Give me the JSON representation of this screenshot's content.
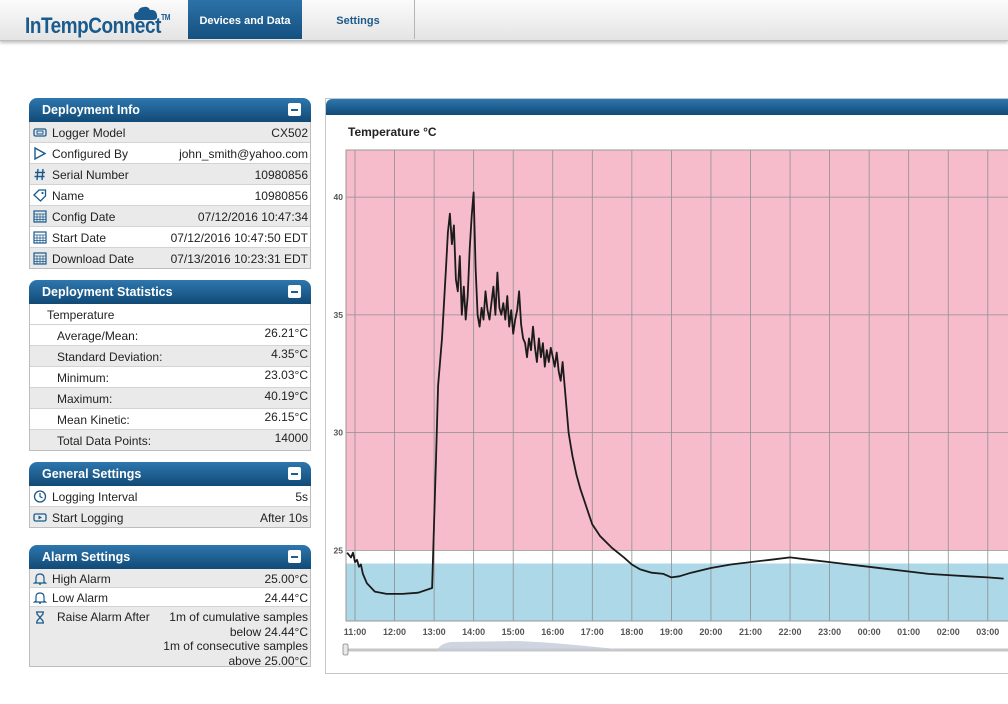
{
  "app": {
    "logo_text": "InTempConnect",
    "logo_tm": "TM",
    "tabs": [
      {
        "label": "Devices and Data",
        "active": true
      },
      {
        "label": "Settings",
        "active": false
      }
    ]
  },
  "deployment_info": {
    "title": "Deployment Info",
    "rows": [
      {
        "icon": "logger-icon",
        "label": "Logger Model",
        "value": "CX502"
      },
      {
        "icon": "play-icon",
        "label": "Configured By",
        "value": "john_smith@yahoo.com"
      },
      {
        "icon": "hash-icon",
        "label": "Serial Number",
        "value": "10980856"
      },
      {
        "icon": "tag-icon",
        "label": "Name",
        "value": "10980856"
      },
      {
        "icon": "calendar-icon",
        "label": "Config Date",
        "value": "07/12/2016 10:47:34"
      },
      {
        "icon": "calendar-icon",
        "label": "Start Date",
        "value": "07/12/2016 10:47:50 EDT"
      },
      {
        "icon": "calendar-icon",
        "label": "Download Date",
        "value": "07/13/2016 10:23:31 EDT"
      }
    ]
  },
  "deployment_statistics": {
    "title": "Deployment Statistics",
    "section_label": "Temperature",
    "rows": [
      {
        "label": "Average/Mean:",
        "value": "26.21°C"
      },
      {
        "label": "Standard Deviation:",
        "value": "4.35°C"
      },
      {
        "label": "Minimum:",
        "value": "23.03°C"
      },
      {
        "label": "Maximum:",
        "value": "40.19°C"
      },
      {
        "label": "Mean Kinetic:",
        "value": "26.15°C"
      },
      {
        "label": "Total Data Points:",
        "value": "14000"
      }
    ]
  },
  "general_settings": {
    "title": "General Settings",
    "rows": [
      {
        "icon": "clock-icon",
        "label": "Logging Interval",
        "value": "5s"
      },
      {
        "icon": "logger-icon",
        "label": "Start Logging",
        "value": "After 10s"
      }
    ]
  },
  "alarm_settings": {
    "title": "Alarm Settings",
    "rows": [
      {
        "icon": "bell-icon",
        "label": "High Alarm",
        "value": "25.00°C"
      },
      {
        "icon": "bell-icon",
        "label": "Low Alarm",
        "value": "24.44°C"
      }
    ],
    "raise": {
      "icon": "hourglass-icon",
      "label": "Raise Alarm After",
      "lines": [
        "1m of cumulative samples",
        "below 24.44°C",
        "1m of consecutive samples",
        "above 25.00°C"
      ]
    }
  },
  "colors": {
    "header_blue": "#1a5d92",
    "high_alarm_zone": "#f6bccb",
    "low_alarm_zone": "#acd8e8"
  },
  "chart_data": {
    "type": "line",
    "title": "Temperature °C",
    "y_ticks": [
      25,
      30,
      35,
      40
    ],
    "x_tick_labels": [
      "11:00",
      "12:00",
      "13:00",
      "14:00",
      "15:00",
      "16:00",
      "17:00",
      "18:00",
      "19:00",
      "20:00",
      "21:00",
      "22:00",
      "23:00",
      "00:00",
      "01:00",
      "02:00",
      "03:00"
    ],
    "ylim": [
      22.0,
      42.0
    ],
    "high_alarm": 25.0,
    "low_alarm": 24.44,
    "grid": true,
    "series": [
      {
        "x_hours": [
          10.8,
          10.9,
          10.95,
          11.0,
          11.05,
          11.1,
          11.15,
          11.2,
          11.3,
          11.5,
          11.8,
          12.2,
          12.6,
          12.95,
          13.05,
          13.1,
          13.2,
          13.25,
          13.3,
          13.35,
          13.4,
          13.45,
          13.5,
          13.55,
          13.6,
          13.65,
          13.7,
          13.75,
          13.8,
          13.85,
          13.9,
          13.95,
          14.0,
          14.05,
          14.1,
          14.15,
          14.2,
          14.25,
          14.3,
          14.35,
          14.4,
          14.45,
          14.5,
          14.55,
          14.6,
          14.65,
          14.7,
          14.75,
          14.8,
          14.85,
          14.9,
          14.95,
          15.0,
          15.05,
          15.1,
          15.15,
          15.2,
          15.25,
          15.3,
          15.35,
          15.4,
          15.45,
          15.5,
          15.55,
          15.6,
          15.65,
          15.7,
          15.75,
          15.8,
          15.85,
          15.9,
          15.95,
          16.0,
          16.05,
          16.1,
          16.15,
          16.2,
          16.25,
          16.3,
          16.35,
          16.4,
          16.45,
          16.5,
          16.55,
          16.6,
          16.65,
          16.7,
          16.8,
          16.9,
          17.0,
          17.2,
          17.5,
          17.8,
          18.0,
          18.2,
          18.5,
          18.8,
          19.0,
          19.2,
          19.5,
          20.0,
          20.5,
          21.0,
          21.5,
          22.0,
          22.5,
          23.0,
          23.5,
          24.0,
          24.5,
          25.0,
          25.5,
          26.0,
          26.5,
          27.0,
          27.4
        ],
        "values": [
          24.9,
          24.7,
          24.9,
          24.5,
          24.6,
          24.3,
          24.4,
          24.0,
          23.6,
          23.25,
          23.15,
          23.15,
          23.2,
          23.4,
          29.0,
          32.0,
          34.0,
          35.5,
          37.0,
          38.5,
          39.3,
          38.0,
          38.8,
          36.5,
          36.0,
          37.5,
          35.0,
          36.2,
          34.8,
          35.8,
          37.8,
          39.2,
          40.2,
          37.0,
          35.0,
          34.5,
          35.3,
          34.8,
          36.0,
          35.2,
          34.8,
          35.5,
          36.2,
          35.0,
          36.8,
          35.3,
          35.0,
          35.5,
          34.8,
          35.8,
          34.5,
          35.2,
          34.2,
          34.8,
          35.2,
          36.0,
          34.6,
          34.0,
          33.8,
          33.2,
          34.0,
          33.5,
          34.5,
          33.6,
          33.0,
          34.0,
          33.2,
          33.8,
          32.8,
          33.5,
          33.0,
          33.6,
          33.2,
          32.8,
          33.4,
          32.6,
          32.2,
          33.0,
          32.0,
          31.0,
          30.0,
          29.5,
          29.0,
          28.6,
          28.2,
          27.9,
          27.6,
          27.1,
          26.6,
          26.1,
          25.6,
          25.1,
          24.7,
          24.4,
          24.2,
          24.05,
          24.0,
          23.85,
          23.9,
          24.05,
          24.25,
          24.4,
          24.5,
          24.6,
          24.7,
          24.6,
          24.5,
          24.4,
          24.3,
          24.2,
          24.1,
          24.0,
          23.95,
          23.9,
          23.85,
          23.8
        ]
      }
    ]
  }
}
